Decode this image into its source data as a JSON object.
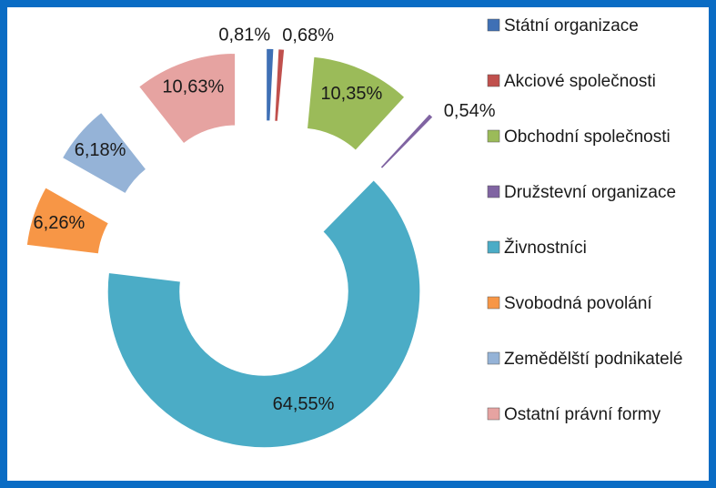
{
  "chart_data": {
    "type": "doughnut",
    "categories": [
      "Státní organizace",
      "Akciové společnosti",
      "Obchodní společnosti",
      "Družstevní organizace",
      "Živnostníci",
      "Svobodná povolání",
      "Zemědělští podnikatelé",
      "Ostatní právní formy"
    ],
    "values": [
      0.81,
      0.68,
      10.35,
      0.54,
      64.55,
      6.26,
      6.18,
      10.63
    ],
    "value_labels": [
      "0,81%",
      "0,68%",
      "10,35%",
      "0,54%",
      "64,55%",
      "6,26%",
      "6,18%",
      "10,63%"
    ],
    "colors": [
      "#3f70b5",
      "#c0504d",
      "#9bbb59",
      "#8064a2",
      "#4bacc6",
      "#f79646",
      "#95b3d7",
      "#e6a3a1"
    ],
    "legend": "right"
  }
}
